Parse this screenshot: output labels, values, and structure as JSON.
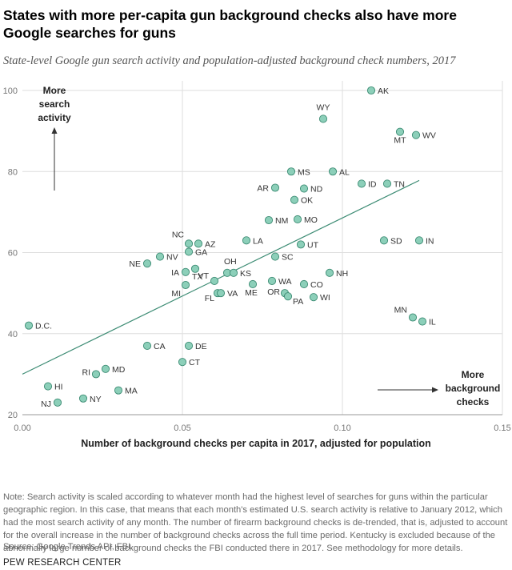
{
  "chart_data": {
    "type": "scatter",
    "title": "States with more per-capita gun background checks also have more Google searches for guns",
    "subtitle": "State-level Google gun search activity and population-adjusted background check numbers, 2017",
    "xlabel": "Number of background checks per capita in 2017, adjusted for population",
    "ylabel": "",
    "xlim": [
      0,
      0.15
    ],
    "ylim": [
      20,
      100
    ],
    "x_ticks": [
      "0.00",
      "0.05",
      "0.10",
      "0.15"
    ],
    "y_ticks": [
      "20",
      "40",
      "60",
      "80",
      "100"
    ],
    "grid": true,
    "point_color": "#8ccfb9",
    "point_stroke": "#3d8c74",
    "trend_color": "#3d8c74",
    "annotations": {
      "y_arrow_lines": [
        "More",
        "search",
        "activity"
      ],
      "x_arrow_lines": [
        "More",
        "background",
        "checks"
      ]
    },
    "trendline": {
      "x": [
        0.0,
        0.124
      ],
      "y": [
        30,
        77.8
      ]
    },
    "points": [
      {
        "label": "AK",
        "x": 0.109,
        "y": 100
      },
      {
        "label": "WY",
        "x": 0.094,
        "y": 93
      },
      {
        "label": "MT",
        "x": 0.118,
        "y": 89.8
      },
      {
        "label": "WV",
        "x": 0.123,
        "y": 89
      },
      {
        "label": "MS",
        "x": 0.084,
        "y": 80
      },
      {
        "label": "AL",
        "x": 0.097,
        "y": 80
      },
      {
        "label": "ID",
        "x": 0.106,
        "y": 77
      },
      {
        "label": "TN",
        "x": 0.114,
        "y": 77
      },
      {
        "label": "AR",
        "x": 0.079,
        "y": 76
      },
      {
        "label": "ND",
        "x": 0.088,
        "y": 75.8
      },
      {
        "label": "OK",
        "x": 0.085,
        "y": 73
      },
      {
        "label": "NM",
        "x": 0.077,
        "y": 68
      },
      {
        "label": "MO",
        "x": 0.086,
        "y": 68.2
      },
      {
        "label": "NC",
        "x": 0.052,
        "y": 62.2
      },
      {
        "label": "AZ",
        "x": 0.055,
        "y": 62.2
      },
      {
        "label": "LA",
        "x": 0.07,
        "y": 63
      },
      {
        "label": "UT",
        "x": 0.087,
        "y": 62
      },
      {
        "label": "SD",
        "x": 0.113,
        "y": 63
      },
      {
        "label": "IN",
        "x": 0.124,
        "y": 63
      },
      {
        "label": "GA",
        "x": 0.052,
        "y": 60.2
      },
      {
        "label": "NV",
        "x": 0.043,
        "y": 59
      },
      {
        "label": "SC",
        "x": 0.079,
        "y": 59
      },
      {
        "label": "NE",
        "x": 0.039,
        "y": 57.3
      },
      {
        "label": "IA",
        "x": 0.051,
        "y": 55.2
      },
      {
        "label": "TX",
        "x": 0.054,
        "y": 56
      },
      {
        "label": "OH",
        "x": 0.064,
        "y": 55
      },
      {
        "label": "KS",
        "x": 0.066,
        "y": 55
      },
      {
        "label": "NH",
        "x": 0.096,
        "y": 55
      },
      {
        "label": "VT",
        "x": 0.06,
        "y": 53
      },
      {
        "label": "WA",
        "x": 0.078,
        "y": 53
      },
      {
        "label": "CO",
        "x": 0.088,
        "y": 52.2
      },
      {
        "label": "MI",
        "x": 0.051,
        "y": 52
      },
      {
        "label": "ME",
        "x": 0.072,
        "y": 52.2
      },
      {
        "label": "FL",
        "x": 0.061,
        "y": 50
      },
      {
        "label": "VA",
        "x": 0.062,
        "y": 50
      },
      {
        "label": "OR",
        "x": 0.082,
        "y": 50
      },
      {
        "label": "PA",
        "x": 0.083,
        "y": 49.2
      },
      {
        "label": "WI",
        "x": 0.091,
        "y": 49
      },
      {
        "label": "MN",
        "x": 0.122,
        "y": 44
      },
      {
        "label": "IL",
        "x": 0.125,
        "y": 43
      },
      {
        "label": "D.C.",
        "x": 0.002,
        "y": 42
      },
      {
        "label": "CA",
        "x": 0.039,
        "y": 37
      },
      {
        "label": "DE",
        "x": 0.052,
        "y": 37
      },
      {
        "label": "CT",
        "x": 0.05,
        "y": 33
      },
      {
        "label": "MD",
        "x": 0.026,
        "y": 31.3
      },
      {
        "label": "RI",
        "x": 0.023,
        "y": 30
      },
      {
        "label": "HI",
        "x": 0.008,
        "y": 27
      },
      {
        "label": "MA",
        "x": 0.03,
        "y": 26
      },
      {
        "label": "NY",
        "x": 0.019,
        "y": 24
      },
      {
        "label": "NJ",
        "x": 0.011,
        "y": 23
      }
    ]
  },
  "note": "Note: Search activity is scaled according to whatever month had the highest level of searches for guns within the particular geographic region. In this case, that means that each month's estimated U.S. search activity is relative to January 2012, which had the most search activity of any month. The number of firearm background checks is de-trended, that is, adjusted to account for the overall increase in the number of background checks across the full time period. Kentucky is excluded because of the abnormally large number of background checks the FBI conducted there in 2017. See methodology for more details.",
  "source": "Source: Google Trends API, FBI.",
  "brand": "PEW RESEARCH CENTER"
}
